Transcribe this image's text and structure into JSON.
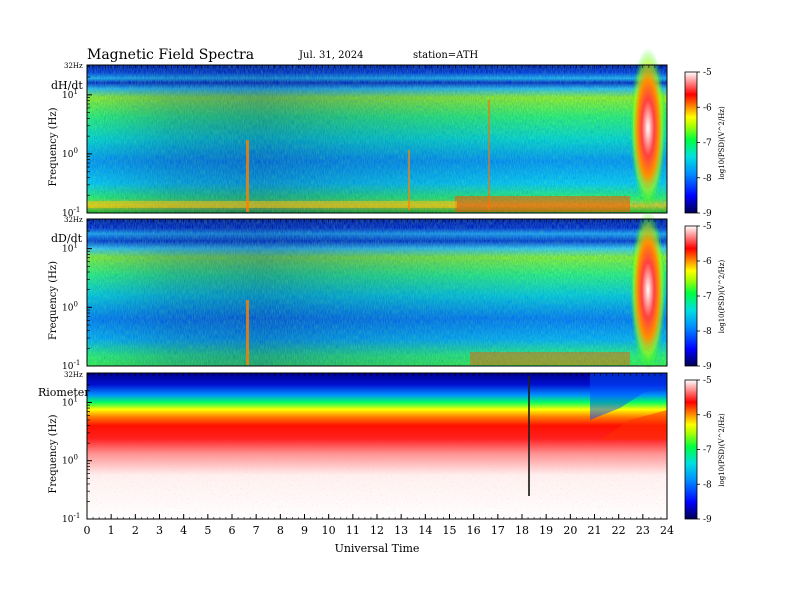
{
  "header": {
    "title": "Magnetic Field Spectra",
    "date": "Jul. 31, 2024",
    "station": "station=ATH"
  },
  "chart_data": [
    {
      "type": "heatmap",
      "panel_label": "dH/dt",
      "ylabel": "Frequency (Hz)",
      "y_ticks": [
        {
          "value": 0.1,
          "exp": "-1",
          "top_label": ""
        },
        {
          "value": 1,
          "exp": "0",
          "top_label": ""
        },
        {
          "value": 10,
          "exp": "1",
          "top_label": ""
        }
      ],
      "ylim": [
        0.1,
        32
      ],
      "top_freq_label": "32Hz",
      "colorbar": {
        "label": "log10(PSD)(V^2/Hz)",
        "ticks": [
          "-5",
          "-6",
          "-7",
          "-8",
          "-9"
        ],
        "range": [
          -9,
          -5
        ]
      }
    },
    {
      "type": "heatmap",
      "panel_label": "dD/dt",
      "ylabel": "Frequency (Hz)",
      "ylim": [
        0.1,
        32
      ],
      "top_freq_label": "32Hz",
      "colorbar": {
        "label": "log10(PSD)(V^2/Hz)",
        "ticks": [
          "-5",
          "-6",
          "-7",
          "-8",
          "-9"
        ],
        "range": [
          -9,
          -5
        ]
      }
    },
    {
      "type": "heatmap",
      "panel_label": "Riometer",
      "ylabel": "Frequency (Hz)",
      "ylim": [
        0.1,
        32
      ],
      "top_freq_label": "32Hz",
      "colorbar": {
        "label": "log10(PSD)(V^2/Hz)",
        "ticks": [
          "-5",
          "-6",
          "-7",
          "-8",
          "-9"
        ],
        "range": [
          -9,
          -5
        ]
      }
    }
  ],
  "x_axis": {
    "label": "Universal Time",
    "range": [
      0,
      24
    ],
    "ticks": [
      "0",
      "1",
      "2",
      "3",
      "4",
      "5",
      "6",
      "7",
      "8",
      "9",
      "10",
      "11",
      "12",
      "13",
      "14",
      "15",
      "16",
      "17",
      "18",
      "19",
      "20",
      "21",
      "22",
      "23",
      "24"
    ]
  },
  "colors": {
    "colormap": [
      "#000060",
      "#0000ff",
      "#0090ff",
      "#00e0e0",
      "#00ff00",
      "#ffff00",
      "#ff8000",
      "#ff0000",
      "#ffffff"
    ]
  }
}
